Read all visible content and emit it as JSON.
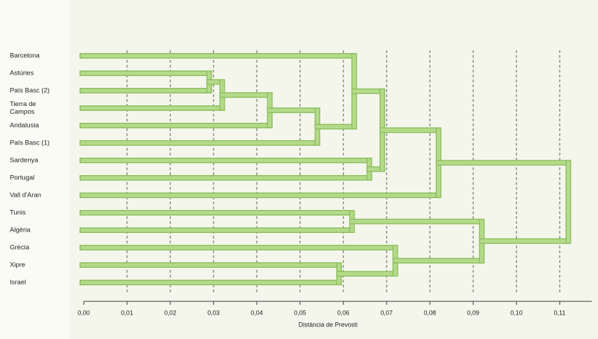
{
  "chart_data": {
    "type": "dendrogram",
    "x_label": "Distància de Prevosti",
    "color": "#b5da8a",
    "grid": true,
    "xlim": [
      0,
      0.1174
    ],
    "xticks": [
      {
        "value": 0,
        "label": "0,00"
      },
      {
        "value": 0.01,
        "label": "0,01"
      },
      {
        "value": 0.02,
        "label": "0,02"
      },
      {
        "value": 0.03,
        "label": "0,03"
      },
      {
        "value": 0.04,
        "label": "0,04"
      },
      {
        "value": 0.05,
        "label": "0,05"
      },
      {
        "value": 0.06,
        "label": "0,06"
      },
      {
        "value": 0.07,
        "label": "0,07"
      },
      {
        "value": 0.08,
        "label": "0,08"
      },
      {
        "value": 0.09,
        "label": "0,09"
      },
      {
        "value": 0.1,
        "label": "0,10"
      },
      {
        "value": 0.11,
        "label": "0,11"
      }
    ],
    "tree": {
      "height": 0.112,
      "children": [
        {
          "height": 0.082,
          "children": [
            {
              "height": 0.069,
              "children": [
                {
                  "height": 0.0625,
                  "children": [
                    "Barcelona",
                    {
                      "height": 0.054,
                      "children": [
                        {
                          "height": 0.043,
                          "children": [
                            {
                              "height": 0.032,
                              "children": [
                                {
                                  "height": 0.029,
                                  "children": [
                                    "Astúries",
                                    "País Basc (2)"
                                  ]
                                },
                                "Tierra de\nCampos"
                              ]
                            },
                            "Andalusia"
                          ]
                        },
                        "País Basc (1)"
                      ]
                    }
                  ]
                },
                {
                  "height": 0.066,
                  "children": [
                    "Sardenya",
                    "Portugal"
                  ]
                }
              ]
            },
            "Vall d'Aran"
          ]
        },
        {
          "height": 0.092,
          "children": [
            {
              "height": 0.062,
              "children": [
                "Tunis",
                "Algèria"
              ]
            },
            {
              "height": 0.072,
              "children": [
                "Grècia",
                {
                  "height": 0.059,
                  "children": [
                    "Xipre",
                    "Israel"
                  ]
                }
              ]
            }
          ]
        }
      ]
    }
  }
}
